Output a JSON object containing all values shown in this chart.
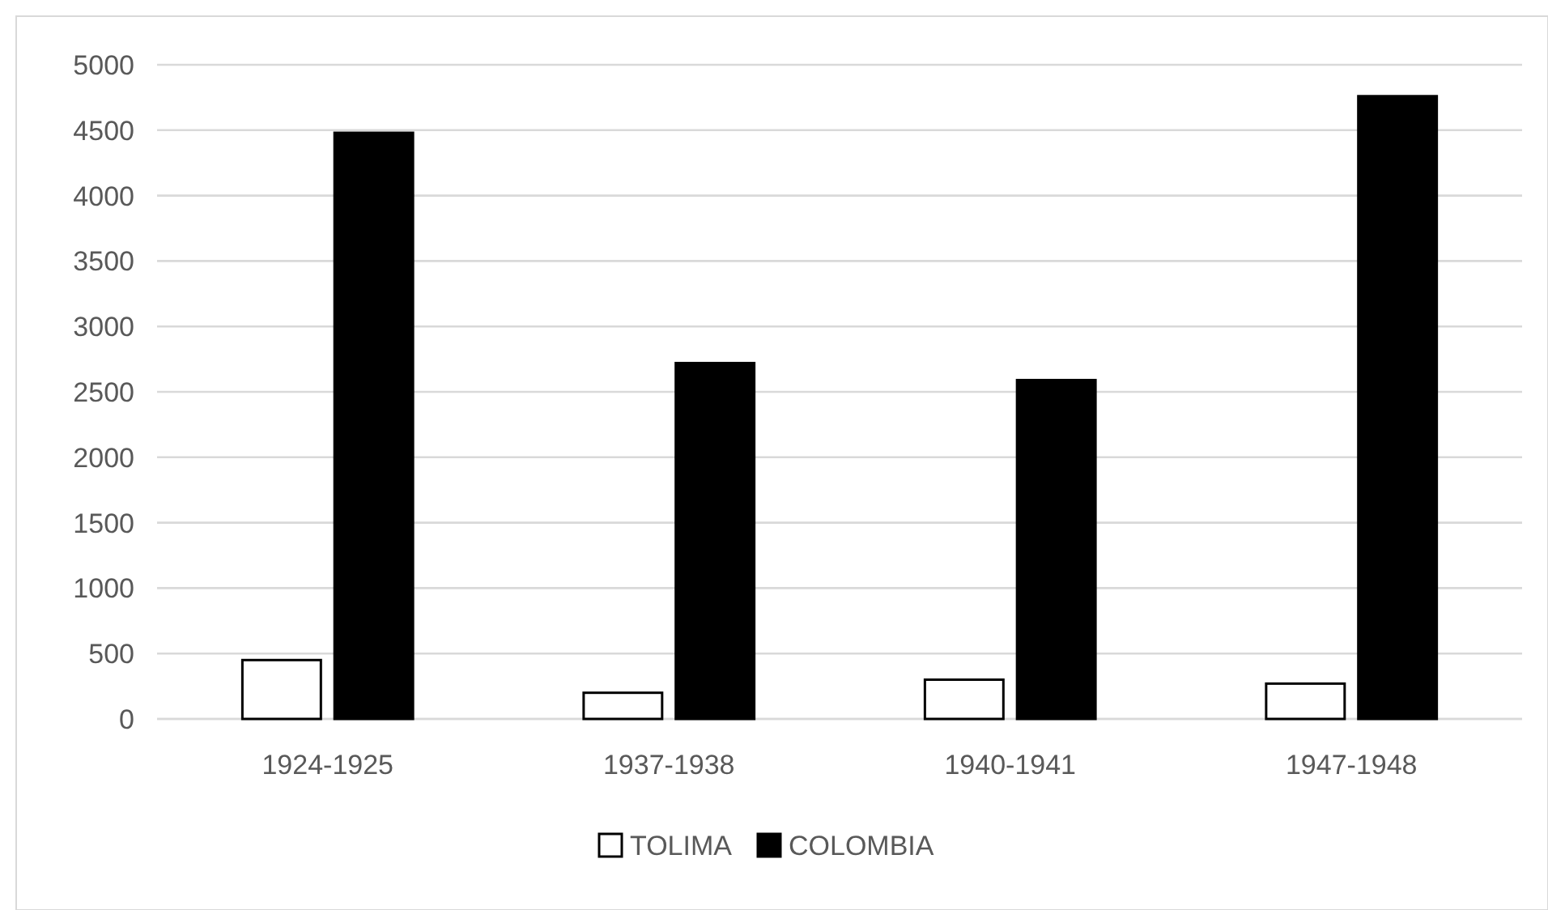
{
  "chart_data": {
    "type": "bar",
    "categories": [
      "1924-1925",
      "1937-1938",
      "1940-1941",
      "1947-1948"
    ],
    "series": [
      {
        "name": "TOLIMA",
        "color": "#ffffff",
        "values": [
          450,
          200,
          300,
          270
        ]
      },
      {
        "name": "COLOMBIA",
        "color": "#000000",
        "values": [
          4480,
          2720,
          2590,
          4760
        ]
      }
    ],
    "ylim": [
      0,
      5000
    ],
    "yticks": [
      0,
      500,
      1000,
      1500,
      2000,
      2500,
      3000,
      3500,
      4000,
      4500,
      5000
    ],
    "grid": "y",
    "legend": "bottom"
  }
}
